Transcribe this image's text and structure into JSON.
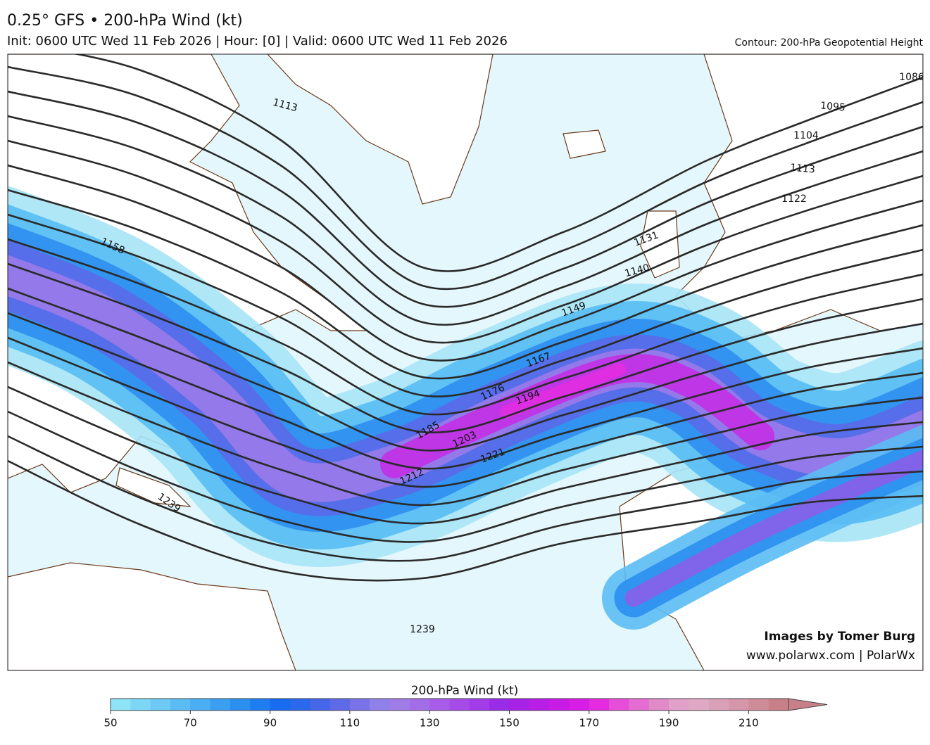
{
  "header": {
    "title": "0.25° GFS • 200-hPa Wind (kt)",
    "subtitle": "Init: 0600 UTC Wed 11 Feb 2026 | Hour: [0] | Valid: 0600 UTC Wed 11 Feb 2026",
    "contour_note": "Contour: 200-hPa Geopotential Height"
  },
  "map": {
    "contour_labels": [
      1113,
      1158,
      1239,
      1239,
      1086,
      1095,
      1104,
      1113,
      1122,
      1131,
      1140,
      1149,
      1167,
      1176,
      1185,
      1194,
      1203,
      1212,
      1221
    ]
  },
  "credits": [
    "Images by Tomer Burg",
    "www.polarwx.com | PolarWx"
  ],
  "colorbar": {
    "title": "200-hPa Wind (kt)",
    "range": [
      50,
      220
    ],
    "ticks": [
      50,
      70,
      90,
      110,
      130,
      150,
      170,
      190,
      210
    ],
    "colors": [
      "#8ee3f7",
      "#7dd6f6",
      "#6ccaf5",
      "#5bbcf4",
      "#4aaef2",
      "#3a9ff0",
      "#2b8ff0",
      "#1e7df0",
      "#176cef",
      "#2a68ec",
      "#4466e8",
      "#5e6ae6",
      "#7a73e8",
      "#9080ea",
      "#a07ce9",
      "#a46de8",
      "#a85ce8",
      "#a64be8",
      "#a23ce8",
      "#9a2ce8",
      "#a822e6",
      "#b81ee6",
      "#c81ce6",
      "#d81de6",
      "#e52ae0",
      "#e64ed8",
      "#e46cd2",
      "#e08ac8",
      "#e0a0c8",
      "#dfa8c4",
      "#d9a0b8",
      "#d496a8",
      "#cf8c98",
      "#c88088"
    ]
  }
}
